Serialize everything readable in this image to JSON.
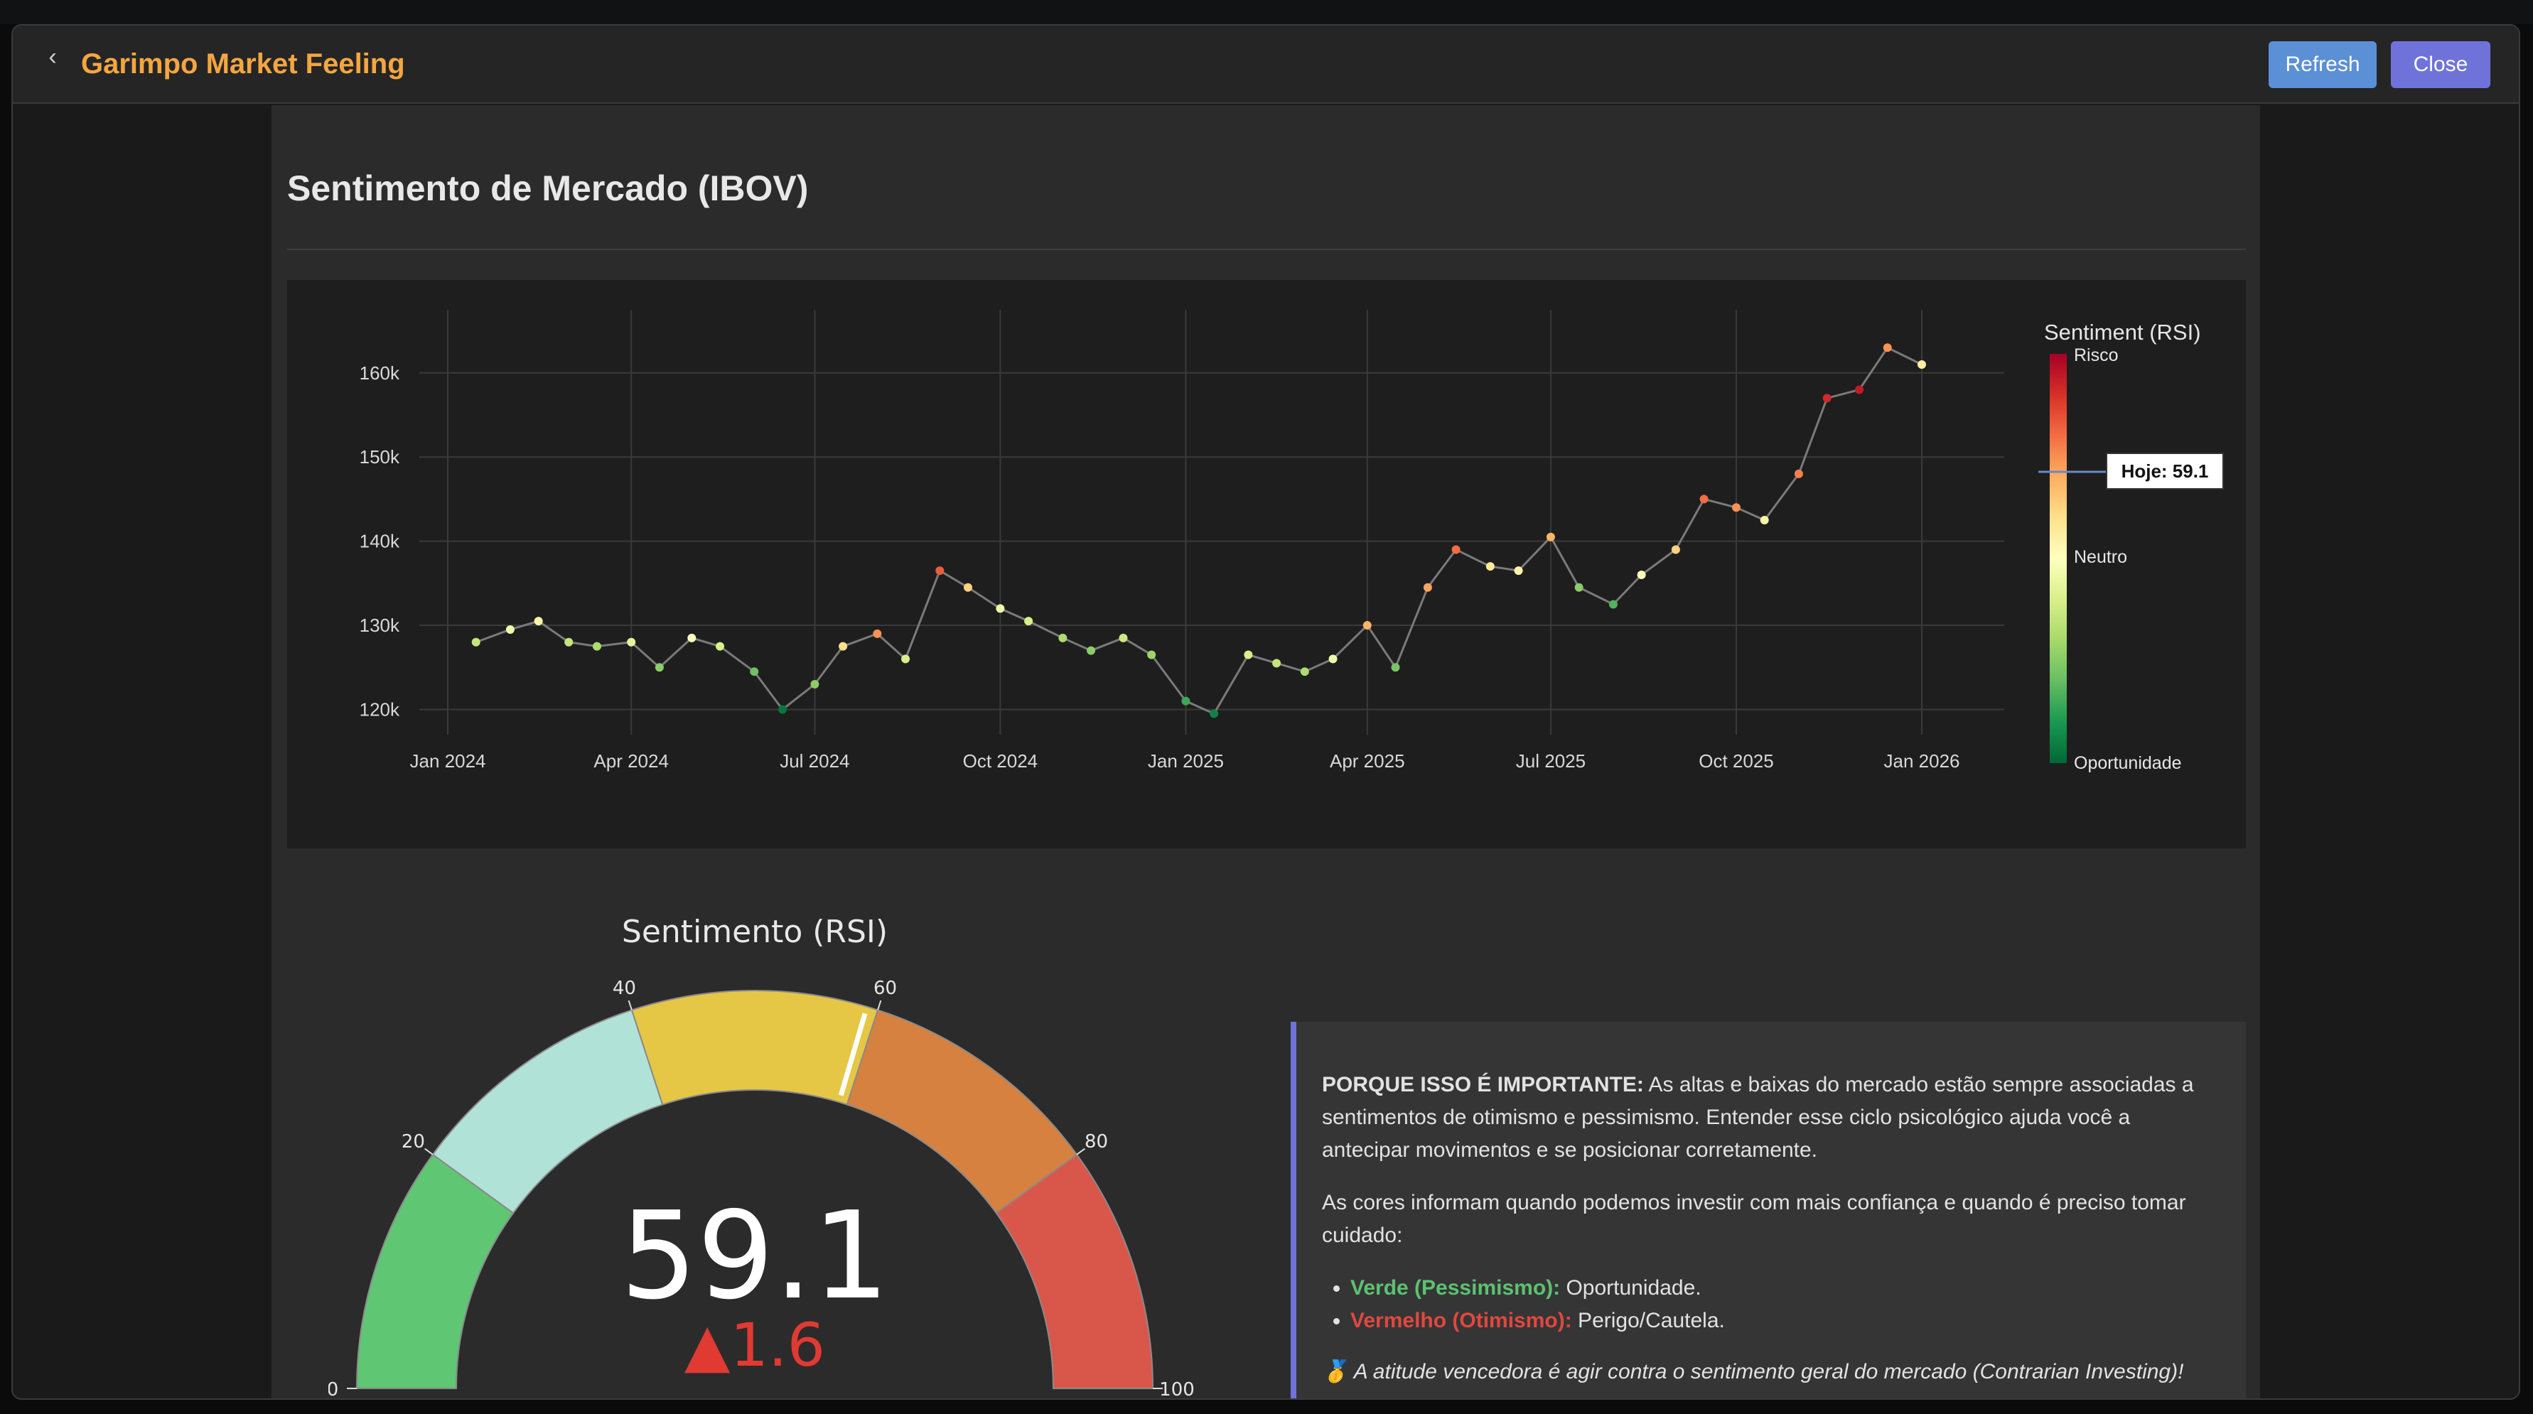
{
  "window": {
    "title": "Garimpo Market Feeling",
    "back_icon": "back-arrow-icon",
    "refresh_label": "Refresh",
    "close_label": "Close"
  },
  "section": {
    "title": "Sentimento de Mercado (IBOV)"
  },
  "chart_data": [
    {
      "type": "scatter",
      "xlabel": "",
      "ylabel": "",
      "x_ticks": [
        "Jan 2024",
        "Apr 2024",
        "Jul 2024",
        "Oct 2024",
        "Jan 2025",
        "Apr 2025",
        "Jul 2025",
        "Oct 2025",
        "Jan 2026"
      ],
      "y_ticks": [
        "120k",
        "130k",
        "140k",
        "150k",
        "160k"
      ],
      "ylim": [
        117000,
        167500
      ],
      "grid": true,
      "colorbar": {
        "title": "Sentiment (RSI)",
        "labels": {
          "top": "Risco",
          "middle": "Neutro",
          "bottom": "Oportunidade"
        },
        "marker_label": "Hoje: 59.1",
        "marker_value": 59.1,
        "colors": [
          "#a50026",
          "#d73027",
          "#f46d43",
          "#fdae61",
          "#fee08b",
          "#ffffbf",
          "#d9ef8b",
          "#a6d96a",
          "#66bd63",
          "#1a9850",
          "#006837"
        ]
      },
      "series": [
        {
          "x": [
            "2024-01-15",
            "2024-02-01",
            "2024-02-15",
            "2024-03-01",
            "2024-03-15",
            "2024-04-01",
            "2024-04-15",
            "2024-05-01",
            "2024-05-15",
            "2024-06-01",
            "2024-06-15",
            "2024-07-01",
            "2024-07-15",
            "2024-08-01",
            "2024-08-15",
            "2024-09-01",
            "2024-09-15",
            "2024-10-01",
            "2024-10-15",
            "2024-11-01",
            "2024-11-15",
            "2024-12-01",
            "2024-12-15",
            "2025-01-01",
            "2025-01-15",
            "2025-02-01",
            "2025-02-15",
            "2025-03-01",
            "2025-03-15",
            "2025-04-01",
            "2025-04-15",
            "2025-05-01",
            "2025-05-15",
            "2025-06-01",
            "2025-06-15",
            "2025-07-01",
            "2025-07-15",
            "2025-08-01",
            "2025-08-15",
            "2025-09-01",
            "2025-09-15",
            "2025-10-01",
            "2025-10-15",
            "2025-11-01",
            "2025-11-15",
            "2025-12-01",
            "2025-12-15",
            "2026-01-01"
          ],
          "y": [
            128000,
            129500,
            130500,
            128000,
            127500,
            128000,
            125000,
            128500,
            127500,
            124500,
            120000,
            123000,
            127500,
            129000,
            126000,
            136500,
            134500,
            132000,
            130500,
            128500,
            127000,
            128500,
            126500,
            121000,
            119500,
            126500,
            125500,
            124500,
            126000,
            130000,
            125000,
            134500,
            139000,
            137000,
            136500,
            140500,
            134500,
            132500,
            136000,
            139000,
            145000,
            144000,
            142500,
            148000,
            157000,
            158000,
            163000,
            161000
          ],
          "rsi": [
            45,
            52,
            58,
            45,
            42,
            50,
            38,
            55,
            48,
            35,
            22,
            38,
            62,
            72,
            48,
            78,
            64,
            52,
            48,
            42,
            38,
            46,
            40,
            30,
            24,
            48,
            45,
            42,
            52,
            68,
            36,
            70,
            76,
            60,
            58,
            68,
            38,
            32,
            55,
            64,
            76,
            72,
            58,
            74,
            84,
            86,
            72,
            59
          ]
        }
      ]
    },
    {
      "type": "gauge",
      "title": "Sentimento (RSI)",
      "value": 59.1,
      "delta": "▲1.6",
      "ticks": [
        "0",
        "20",
        "40",
        "60",
        "80",
        "100"
      ],
      "range": [
        0,
        100
      ],
      "bands": [
        {
          "from": 0,
          "to": 20,
          "color": "#5fc673"
        },
        {
          "from": 20,
          "to": 40,
          "color": "#b1e2d8"
        },
        {
          "from": 40,
          "to": 60,
          "color": "#e6c645"
        },
        {
          "from": 60,
          "to": 80,
          "color": "#d6813f"
        },
        {
          "from": 80,
          "to": 100,
          "color": "#d9574a"
        }
      ]
    }
  ],
  "info": {
    "p1_bold": "PORQUE ISSO É IMPORTANTE:",
    "p1_text": " As altas e baixas do mercado estão sempre associadas a sentimentos de otimismo e pessimismo. Entender esse ciclo psicológico ajuda você a antecipar movimentos e se posicionar corretamente.",
    "p2": "As cores informam quando podemos investir com mais confiança e quando é preciso tomar cuidado:",
    "green_label": "Verde (Pessimismo):",
    "green_text": " Oportunidade.",
    "red_label": "Vermelho (Otimismo):",
    "red_text": " Perigo/Cautela.",
    "quote": "🥇 A atitude vencedora é agir contra o sentimento geral do mercado (Contrarian Investing)!"
  }
}
